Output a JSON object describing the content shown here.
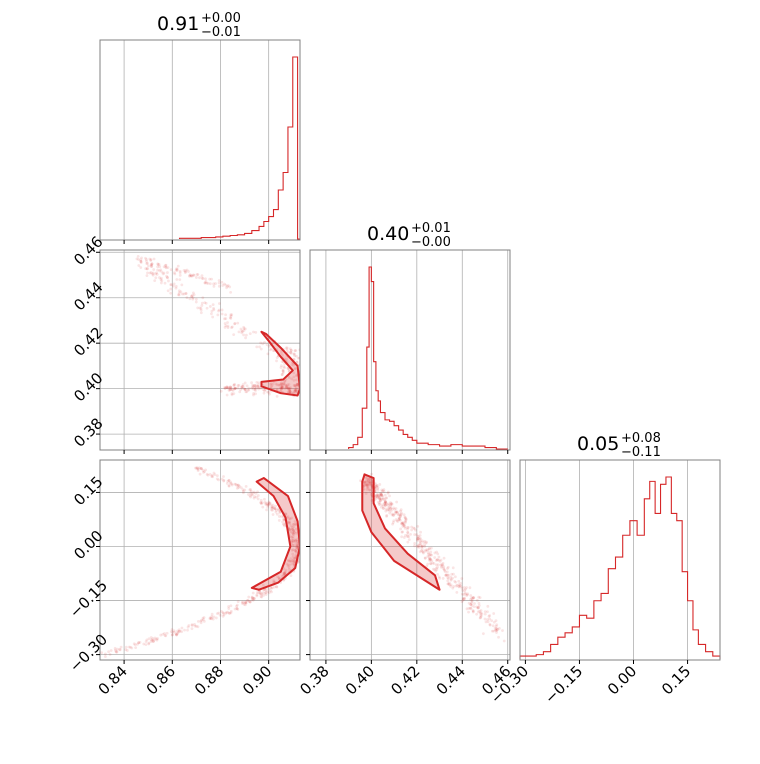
{
  "chart_data": {
    "type": "corner",
    "colors": {
      "accent": "#d62728",
      "grid": "#b0b0b0",
      "frame": "#808080"
    },
    "params": [
      {
        "range": [
          0.83,
          0.913
        ],
        "ticks": [
          "0.84",
          "0.86",
          "0.88",
          "0.90"
        ],
        "tick_values": [
          0.84,
          0.86,
          0.88,
          0.9
        ]
      },
      {
        "range": [
          0.373,
          0.461
        ],
        "ticks": [
          "0.38",
          "0.40",
          "0.42",
          "0.44",
          "0.46"
        ],
        "tick_values": [
          0.38,
          0.4,
          0.42,
          0.44,
          0.46
        ]
      },
      {
        "range": [
          -0.315,
          0.24
        ],
        "ticks": [
          "−0.30",
          "−0.15",
          "0.00",
          "0.15"
        ],
        "tick_values": [
          -0.3,
          -0.15,
          0.0,
          0.15
        ]
      }
    ],
    "titles": [
      {
        "value": "0.91",
        "plus": "+0.00",
        "minus": "−0.01"
      },
      {
        "value": "0.40",
        "plus": "+0.01",
        "minus": "−0.00"
      },
      {
        "value": "0.05",
        "plus": "+0.08",
        "minus": "−0.11"
      }
    ],
    "histograms": [
      {
        "param": 0,
        "edges": [
          0.863,
          0.866,
          0.869,
          0.872,
          0.875,
          0.878,
          0.881,
          0.884,
          0.887,
          0.89,
          0.893,
          0.896,
          0.898,
          0.9,
          0.902,
          0.904,
          0.906,
          0.908,
          0.91,
          0.912,
          0.913
        ],
        "counts": [
          1,
          1,
          1,
          2,
          2,
          3,
          4,
          5,
          6,
          8,
          12,
          18,
          25,
          32,
          42,
          70,
          95,
          160,
          260,
          0
        ]
      },
      {
        "param": 1,
        "edges": [
          0.39,
          0.392,
          0.394,
          0.396,
          0.398,
          0.399,
          0.4,
          0.401,
          0.402,
          0.403,
          0.404,
          0.406,
          0.408,
          0.41,
          0.412,
          0.414,
          0.416,
          0.418,
          0.42,
          0.425,
          0.43,
          0.435,
          0.44,
          0.445,
          0.45,
          0.455,
          0.46
        ],
        "counts": [
          1,
          3,
          8,
          28,
          70,
          125,
          115,
          60,
          40,
          33,
          25,
          20,
          19,
          16,
          13,
          10,
          8,
          6,
          4,
          3,
          2,
          3,
          2,
          2,
          1,
          0
        ]
      },
      {
        "param": 2,
        "edges": [
          -0.315,
          -0.29,
          -0.27,
          -0.25,
          -0.23,
          -0.21,
          -0.19,
          -0.17,
          -0.15,
          -0.13,
          -0.11,
          -0.09,
          -0.07,
          -0.05,
          -0.03,
          -0.01,
          0.01,
          0.03,
          0.045,
          0.06,
          0.075,
          0.09,
          0.105,
          0.12,
          0.135,
          0.15,
          0.165,
          0.18,
          0.2,
          0.22,
          0.24
        ],
        "counts": [
          2,
          2,
          3,
          5,
          10,
          15,
          18,
          22,
          30,
          28,
          40,
          45,
          62,
          70,
          85,
          95,
          85,
          110,
          122,
          100,
          120,
          125,
          100,
          95,
          60,
          40,
          20,
          10,
          5,
          2
        ]
      }
    ],
    "panels": [
      {
        "x": 0,
        "y": 1,
        "shape": "crescent"
      },
      {
        "x": 0,
        "y": 2,
        "shape": "arc"
      },
      {
        "x": 1,
        "y": 2,
        "shape": "band"
      }
    ]
  }
}
